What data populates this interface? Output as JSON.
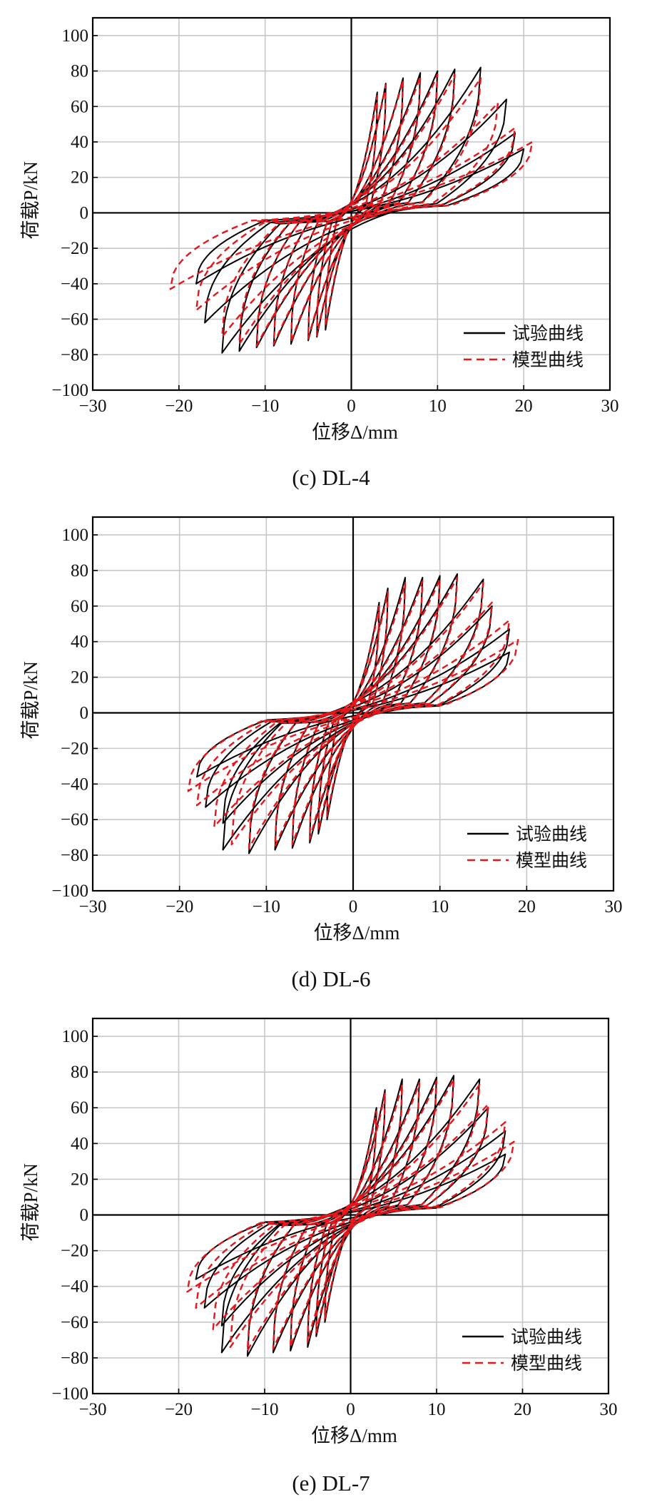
{
  "legend": {
    "test": "试验曲线",
    "model": "模型曲线"
  },
  "colors": {
    "test": "#000000",
    "model": "#e8151b",
    "grid": "#c8c8c8"
  },
  "chart_data": [
    {
      "type": "line",
      "caption": "(c) DL-4",
      "xlabel": "位移Δ/mm",
      "ylabel": "荷载P/kN",
      "xlim": [
        -30,
        30
      ],
      "ylim": [
        -100,
        110
      ],
      "xticks": [
        "−30",
        "−20",
        "−10",
        "0",
        "10",
        "20",
        "30"
      ],
      "yticks": [
        "−100",
        "−80",
        "−60",
        "−40",
        "−20",
        "0",
        "20",
        "40",
        "60",
        "80",
        "100"
      ],
      "grid": true,
      "legend_position": "bottom-right",
      "series": [
        {
          "name": "试验曲线",
          "style": "solid",
          "loops": [
            {
              "d": 3,
              "p": 68,
              "dn": -3,
              "pn": -66
            },
            {
              "d": 4,
              "p": 73,
              "dn": -4,
              "pn": -70
            },
            {
              "d": 6,
              "p": 76,
              "dn": -5,
              "pn": -72
            },
            {
              "d": 8,
              "p": 79,
              "dn": -7,
              "pn": -74
            },
            {
              "d": 10,
              "p": 80,
              "dn": -9,
              "pn": -75
            },
            {
              "d": 12,
              "p": 81,
              "dn": -11,
              "pn": -76
            },
            {
              "d": 15,
              "p": 82,
              "dn": -13,
              "pn": -78
            },
            {
              "d": 18,
              "p": 64,
              "dn": -15,
              "pn": -79
            },
            {
              "d": 19,
              "p": 45,
              "dn": -17,
              "pn": -62
            },
            {
              "d": 20,
              "p": 36,
              "dn": -18,
              "pn": -40
            }
          ]
        },
        {
          "name": "模型曲线",
          "style": "dashed",
          "loops": [
            {
              "d": 3,
              "p": 66,
              "dn": -3,
              "pn": -64
            },
            {
              "d": 4,
              "p": 72,
              "dn": -4,
              "pn": -69
            },
            {
              "d": 6,
              "p": 75,
              "dn": -5,
              "pn": -71
            },
            {
              "d": 8,
              "p": 77,
              "dn": -7,
              "pn": -73
            },
            {
              "d": 10,
              "p": 78,
              "dn": -9,
              "pn": -74
            },
            {
              "d": 12,
              "p": 78,
              "dn": -11,
              "pn": -75
            },
            {
              "d": 15,
              "p": 76,
              "dn": -13,
              "pn": -74
            },
            {
              "d": 17,
              "p": 62,
              "dn": -15,
              "pn": -70
            },
            {
              "d": 19,
              "p": 48,
              "dn": -18,
              "pn": -55
            },
            {
              "d": 21,
              "p": 40,
              "dn": -21,
              "pn": -43
            }
          ]
        }
      ]
    },
    {
      "type": "line",
      "caption": "(d) DL-6",
      "xlabel": "位移Δ/mm",
      "ylabel": "荷载P/kN",
      "xlim": [
        -30,
        30
      ],
      "ylim": [
        -100,
        110
      ],
      "xticks": [
        "−30",
        "−20",
        "−10",
        "0",
        "10",
        "20",
        "30"
      ],
      "yticks": [
        "−100",
        "−80",
        "−60",
        "−40",
        "−20",
        "0",
        "20",
        "40",
        "60",
        "80",
        "100"
      ],
      "grid": true,
      "legend_position": "bottom-right",
      "series": [
        {
          "name": "试验曲线",
          "style": "solid",
          "loops": [
            {
              "d": 3,
              "p": 62,
              "dn": -3,
              "pn": -60
            },
            {
              "d": 4,
              "p": 70,
              "dn": -4,
              "pn": -68
            },
            {
              "d": 6,
              "p": 76,
              "dn": -5,
              "pn": -73
            },
            {
              "d": 8,
              "p": 76,
              "dn": -7,
              "pn": -76
            },
            {
              "d": 10,
              "p": 77,
              "dn": -9,
              "pn": -77
            },
            {
              "d": 12,
              "p": 78,
              "dn": -12,
              "pn": -79
            },
            {
              "d": 15,
              "p": 75,
              "dn": -15,
              "pn": -77
            },
            {
              "d": 16,
              "p": 60,
              "dn": -15,
              "pn": -62
            },
            {
              "d": 18,
              "p": 47,
              "dn": -17,
              "pn": -53
            },
            {
              "d": 18,
              "p": 34,
              "dn": -18,
              "pn": -36
            }
          ]
        },
        {
          "name": "模型曲线",
          "style": "dashed",
          "loops": [
            {
              "d": 3,
              "p": 60,
              "dn": -3,
              "pn": -58
            },
            {
              "d": 4,
              "p": 68,
              "dn": -4,
              "pn": -66
            },
            {
              "d": 6,
              "p": 73,
              "dn": -5,
              "pn": -71
            },
            {
              "d": 8,
              "p": 74,
              "dn": -7,
              "pn": -74
            },
            {
              "d": 10,
              "p": 75,
              "dn": -9,
              "pn": -75
            },
            {
              "d": 12,
              "p": 76,
              "dn": -12,
              "pn": -76
            },
            {
              "d": 15,
              "p": 73,
              "dn": -14,
              "pn": -74
            },
            {
              "d": 16,
              "p": 62,
              "dn": -16,
              "pn": -64
            },
            {
              "d": 18,
              "p": 52,
              "dn": -18,
              "pn": -52
            },
            {
              "d": 19,
              "p": 41,
              "dn": -19,
              "pn": -44
            }
          ]
        }
      ]
    },
    {
      "type": "line",
      "caption": "(e) DL-7",
      "xlabel": "位移Δ/mm",
      "ylabel": "荷载P/kN",
      "xlim": [
        -30,
        30
      ],
      "ylim": [
        -100,
        110
      ],
      "xticks": [
        "−30",
        "−20",
        "−10",
        "0",
        "10",
        "20",
        "30"
      ],
      "yticks": [
        "−100",
        "−80",
        "−60",
        "−40",
        "−20",
        "0",
        "20",
        "40",
        "60",
        "80",
        "100"
      ],
      "grid": true,
      "legend_position": "bottom-right",
      "series": [
        {
          "name": "试验曲线",
          "style": "solid",
          "loops": [
            {
              "d": 3,
              "p": 60,
              "dn": -3,
              "pn": -60
            },
            {
              "d": 4,
              "p": 70,
              "dn": -4,
              "pn": -68
            },
            {
              "d": 6,
              "p": 76,
              "dn": -5,
              "pn": -74
            },
            {
              "d": 8,
              "p": 76,
              "dn": -7,
              "pn": -76
            },
            {
              "d": 10,
              "p": 77,
              "dn": -9,
              "pn": -77
            },
            {
              "d": 12,
              "p": 78,
              "dn": -12,
              "pn": -79
            },
            {
              "d": 15,
              "p": 76,
              "dn": -15,
              "pn": -77
            },
            {
              "d": 16,
              "p": 60,
              "dn": -15,
              "pn": -62
            },
            {
              "d": 18,
              "p": 47,
              "dn": -17,
              "pn": -52
            },
            {
              "d": 18,
              "p": 34,
              "dn": -18,
              "pn": -36
            }
          ]
        },
        {
          "name": "模型曲线",
          "style": "dashed",
          "loops": [
            {
              "d": 3,
              "p": 58,
              "dn": -3,
              "pn": -58
            },
            {
              "d": 4,
              "p": 68,
              "dn": -4,
              "pn": -66
            },
            {
              "d": 6,
              "p": 73,
              "dn": -5,
              "pn": -71
            },
            {
              "d": 8,
              "p": 74,
              "dn": -7,
              "pn": -74
            },
            {
              "d": 10,
              "p": 75,
              "dn": -9,
              "pn": -75
            },
            {
              "d": 12,
              "p": 76,
              "dn": -12,
              "pn": -76
            },
            {
              "d": 15,
              "p": 73,
              "dn": -14,
              "pn": -74
            },
            {
              "d": 16,
              "p": 62,
              "dn": -16,
              "pn": -64
            },
            {
              "d": 18,
              "p": 52,
              "dn": -18,
              "pn": -52
            },
            {
              "d": 19,
              "p": 41,
              "dn": -19,
              "pn": -43
            }
          ]
        }
      ]
    }
  ]
}
